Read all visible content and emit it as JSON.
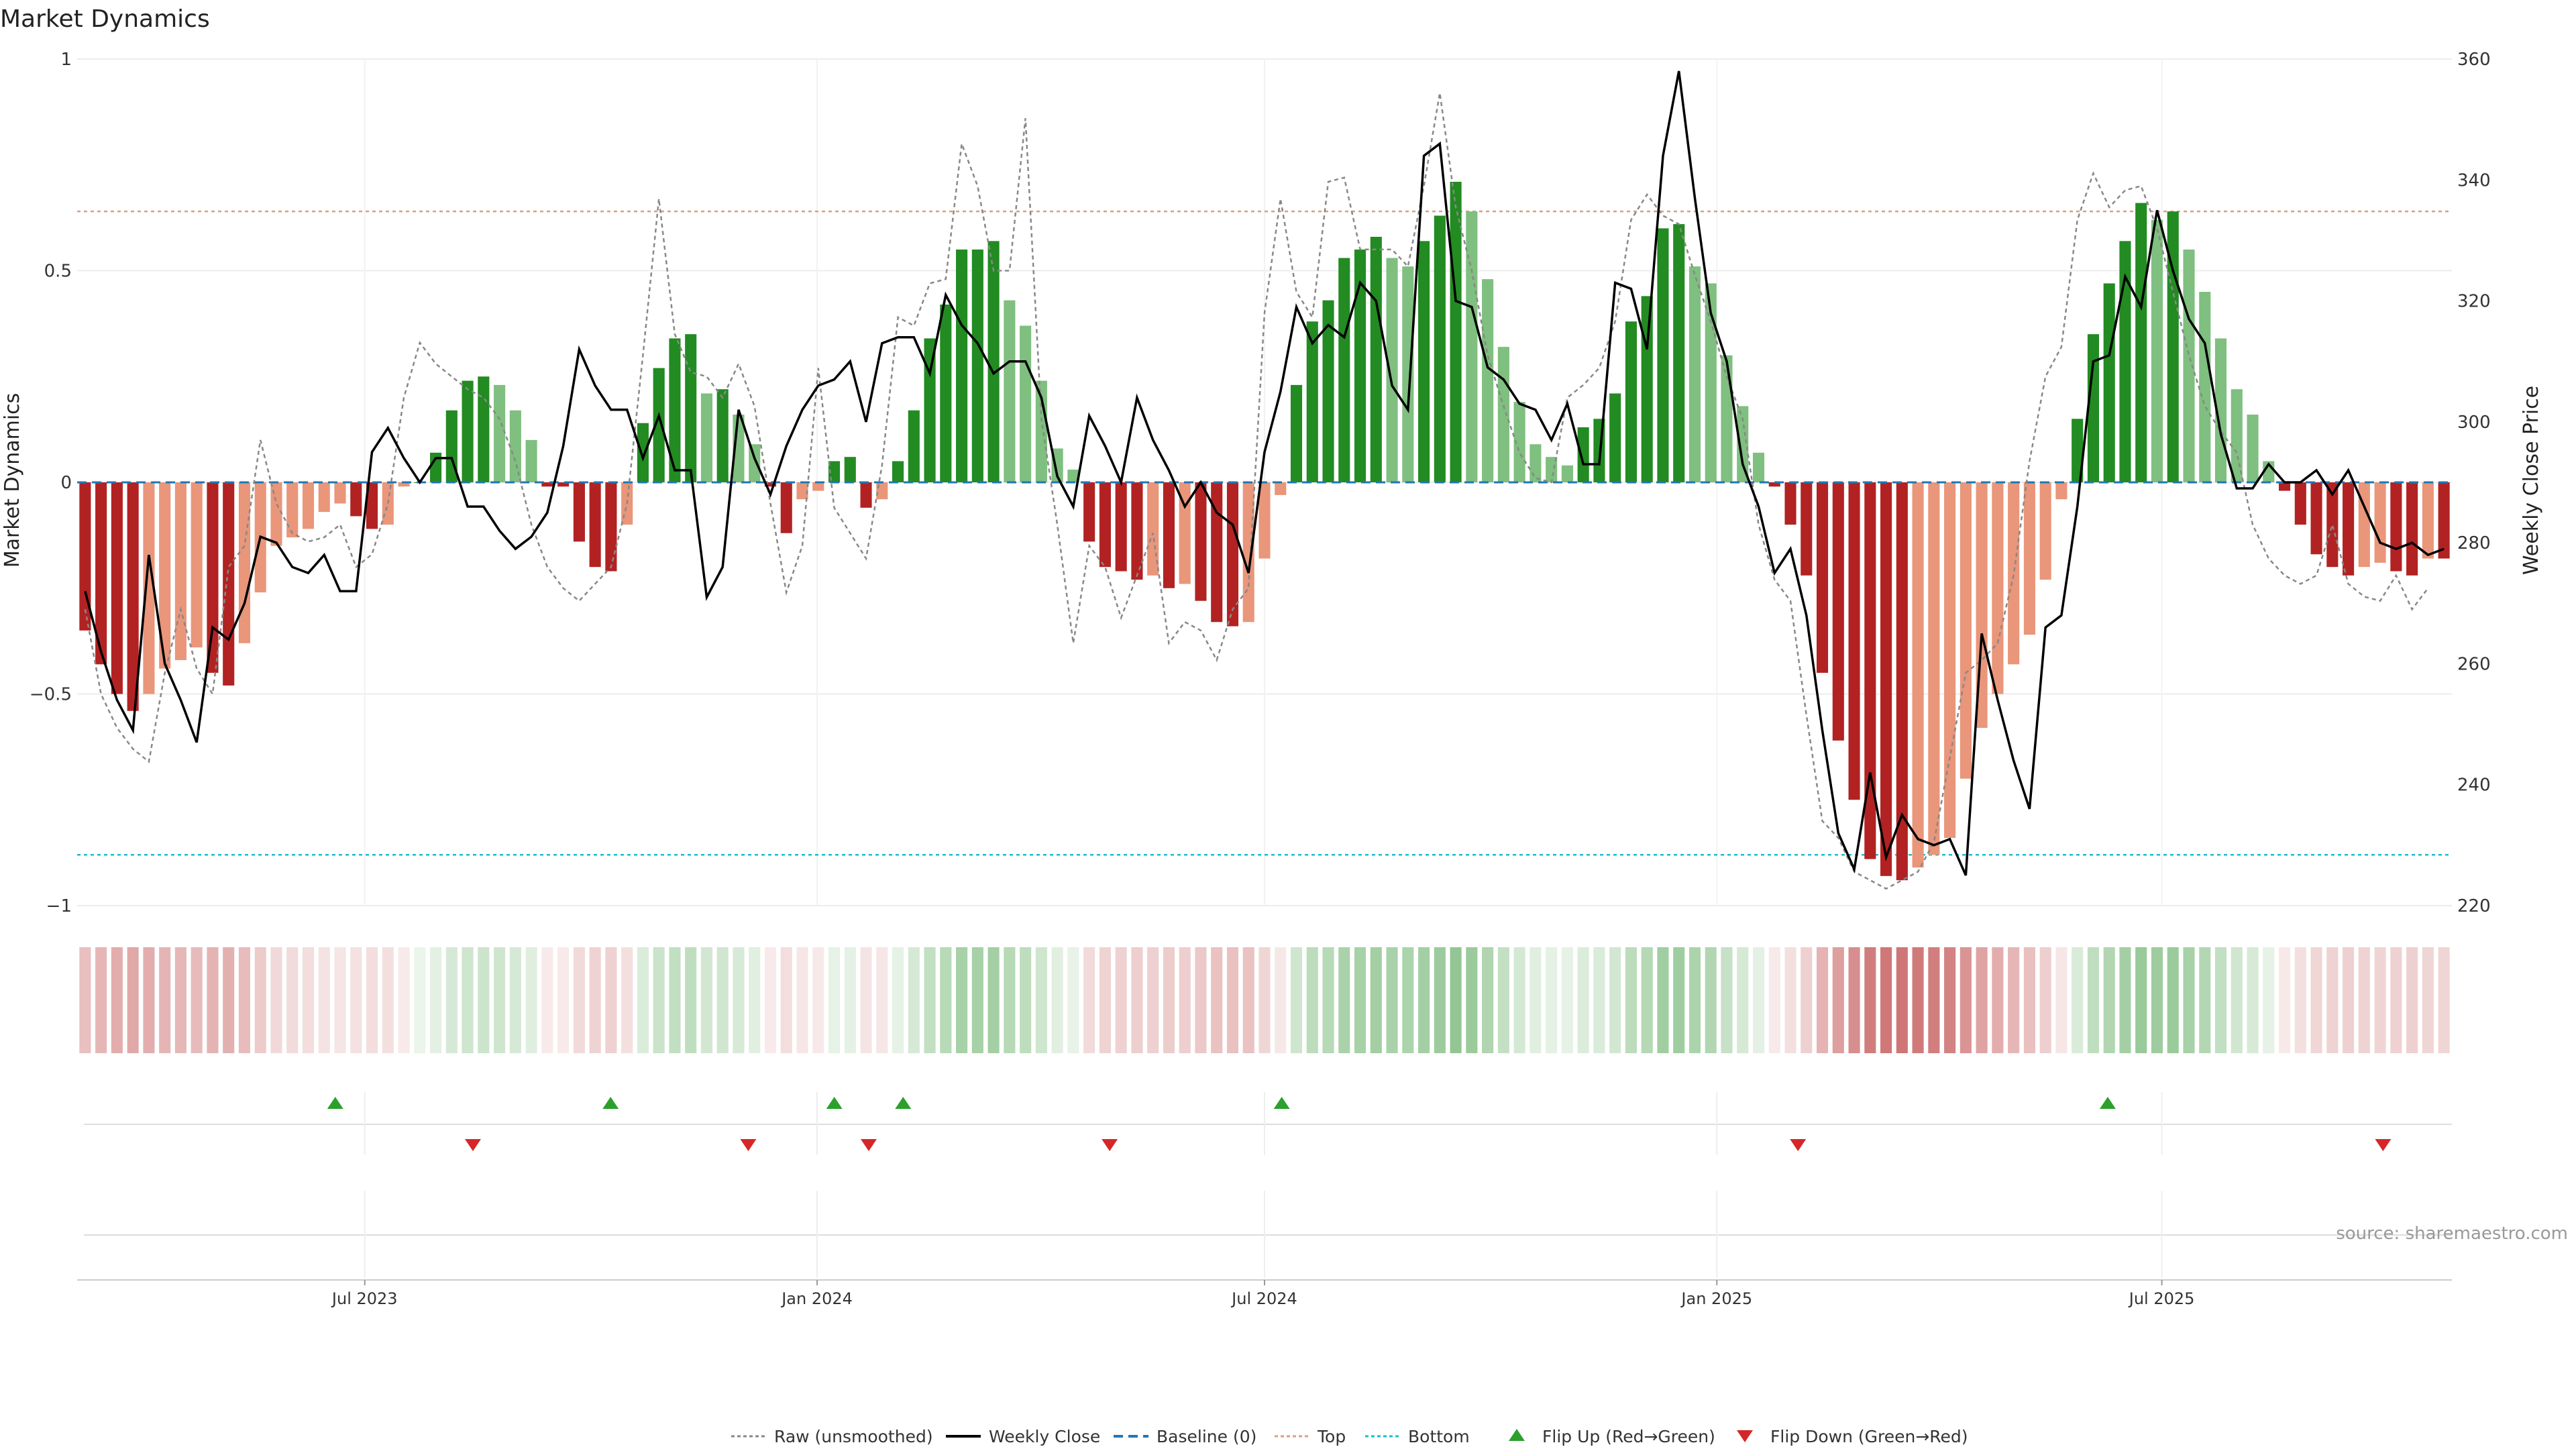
{
  "chart_data": {
    "type": "bar",
    "title": "Market Dynamics",
    "ylabel": "Market Dynamics",
    "y2label": "Weekly Close Price",
    "ylim": [
      -1,
      1
    ],
    "y2lim": [
      220,
      360
    ],
    "yticks": [
      1,
      0.5,
      0,
      -0.5,
      -1
    ],
    "ytick_labels": [
      "1",
      "0.5",
      "0",
      "−0.5",
      "−1"
    ],
    "y2ticks": [
      360,
      340,
      320,
      300,
      280,
      260,
      240,
      220
    ],
    "x_start": "2023-03-06",
    "x_end": "2025-10-27",
    "x_tick_dates": [
      "2023-07-01",
      "2024-01-01",
      "2024-07-01",
      "2025-01-01",
      "2025-07-01"
    ],
    "xtick_labels": [
      "Jul 2023",
      "Jan 2024",
      "Jul 2024",
      "Jan 2025",
      "Jul 2025"
    ],
    "top_threshold": 0.64,
    "bottom_threshold": -0.88,
    "grid": true,
    "legend_position": "bottom-center",
    "colors": {
      "strong_green": "#228B22",
      "weak_green": "#7FBF7F",
      "strong_red": "#B22222",
      "weak_red": "#E9967A",
      "close_line": "#000000",
      "raw_line": "#888888",
      "baseline": "#1f77b4",
      "top_line": "#d8a080",
      "bottom_line": "#17becf",
      "flip_up": "#2ca02c",
      "flip_down": "#d62728"
    },
    "series": [
      {
        "name": "Market Dynamics",
        "values": [
          -0.35,
          -0.43,
          -0.5,
          -0.54,
          -0.5,
          -0.44,
          -0.42,
          -0.39,
          -0.45,
          -0.48,
          -0.38,
          -0.26,
          -0.15,
          -0.13,
          -0.11,
          -0.07,
          -0.05,
          -0.08,
          -0.11,
          -0.1,
          -0.01,
          0.0,
          0.07,
          0.17,
          0.24,
          0.25,
          0.23,
          0.17,
          0.1,
          -0.01,
          -0.01,
          -0.14,
          -0.2,
          -0.21,
          -0.1,
          0.14,
          0.27,
          0.34,
          0.35,
          0.21,
          0.22,
          0.16,
          0.09,
          -0.01,
          -0.12,
          -0.04,
          -0.02,
          0.05,
          0.06,
          -0.06,
          -0.04,
          0.05,
          0.17,
          0.34,
          0.42,
          0.55,
          0.55,
          0.57,
          0.43,
          0.37,
          0.24,
          0.08,
          0.03,
          -0.14,
          -0.2,
          -0.21,
          -0.23,
          -0.22,
          -0.25,
          -0.24,
          -0.28,
          -0.33,
          -0.34,
          -0.33,
          -0.18,
          -0.03,
          0.23,
          0.38,
          0.43,
          0.53,
          0.55,
          0.58,
          0.53,
          0.51,
          0.57,
          0.63,
          0.71,
          0.64,
          0.48,
          0.32,
          0.19,
          0.09,
          0.06,
          0.04,
          0.13,
          0.15,
          0.21,
          0.38,
          0.44,
          0.6,
          0.61,
          0.51,
          0.47,
          0.3,
          0.18,
          0.07,
          -0.01,
          -0.1,
          -0.22,
          -0.45,
          -0.61,
          -0.75,
          -0.89,
          -0.93,
          -0.94,
          -0.91,
          -0.88,
          -0.84,
          -0.7,
          -0.58,
          -0.5,
          -0.43,
          -0.36,
          -0.23,
          -0.04,
          0.15,
          0.35,
          0.47,
          0.57,
          0.66,
          0.62,
          0.64,
          0.55,
          0.45,
          0.34,
          0.22,
          0.16,
          0.05,
          -0.02,
          -0.1,
          -0.17,
          -0.2,
          -0.22,
          -0.2,
          -0.19,
          -0.21,
          -0.22,
          -0.18,
          -0.18
        ]
      },
      {
        "name": "Raw (unsmoothed)",
        "values": [
          -0.3,
          -0.5,
          -0.58,
          -0.63,
          -0.66,
          -0.45,
          -0.3,
          -0.44,
          -0.5,
          -0.2,
          -0.15,
          0.1,
          -0.05,
          -0.12,
          -0.14,
          -0.13,
          -0.1,
          -0.2,
          -0.17,
          -0.05,
          0.2,
          0.33,
          0.28,
          0.25,
          0.22,
          0.2,
          0.15,
          0.05,
          -0.1,
          -0.2,
          -0.25,
          -0.28,
          -0.24,
          -0.2,
          -0.05,
          0.3,
          0.67,
          0.35,
          0.26,
          0.25,
          0.2,
          0.28,
          0.18,
          -0.05,
          -0.26,
          -0.15,
          0.27,
          -0.06,
          -0.12,
          -0.18,
          0.04,
          0.39,
          0.37,
          0.47,
          0.48,
          0.8,
          0.7,
          0.5,
          0.5,
          0.86,
          0.15,
          -0.1,
          -0.38,
          -0.15,
          -0.2,
          -0.32,
          -0.22,
          -0.12,
          -0.38,
          -0.33,
          -0.35,
          -0.42,
          -0.3,
          -0.25,
          0.4,
          0.67,
          0.45,
          0.39,
          0.71,
          0.72,
          0.55,
          0.55,
          0.55,
          0.51,
          0.7,
          0.92,
          0.65,
          0.5,
          0.3,
          0.18,
          0.07,
          0.01,
          0.0,
          0.2,
          0.23,
          0.27,
          0.38,
          0.62,
          0.68,
          0.63,
          0.61,
          0.49,
          0.38,
          0.25,
          0.15,
          -0.1,
          -0.23,
          -0.28,
          -0.55,
          -0.8,
          -0.84,
          -0.92,
          -0.94,
          -0.96,
          -0.94,
          -0.92,
          -0.85,
          -0.65,
          -0.45,
          -0.42,
          -0.38,
          -0.22,
          0.05,
          0.25,
          0.32,
          0.62,
          0.73,
          0.65,
          0.69,
          0.7,
          0.6,
          0.45,
          0.3,
          0.18,
          0.12,
          0.07,
          -0.1,
          -0.18,
          -0.22,
          -0.24,
          -0.22,
          -0.1,
          -0.24,
          -0.27,
          -0.28,
          -0.22,
          -0.3,
          -0.25
        ]
      },
      {
        "name": "Weekly Close",
        "values": [
          272,
          262,
          254,
          249,
          278,
          260,
          254,
          247,
          266,
          264,
          270,
          281,
          280,
          276,
          275,
          278,
          272,
          272,
          295,
          299,
          294,
          290,
          294,
          294,
          286,
          286,
          282,
          279,
          281,
          285,
          296,
          312,
          306,
          302,
          302,
          294,
          301,
          292,
          292,
          271,
          276,
          302,
          294,
          288,
          296,
          302,
          306,
          307,
          310,
          300,
          313,
          314,
          314,
          308,
          321,
          316,
          313,
          308,
          310,
          310,
          304,
          291,
          286,
          301,
          296,
          290,
          304,
          297,
          292,
          286,
          290,
          285,
          283,
          275,
          295,
          305,
          319,
          313,
          316,
          314,
          323,
          320,
          306,
          302,
          344,
          346,
          320,
          319,
          309,
          307,
          303,
          302,
          297,
          303,
          293,
          293,
          323,
          322,
          312,
          344,
          358,
          337,
          318,
          310,
          293,
          286,
          275,
          279,
          268,
          249,
          232,
          226,
          242,
          228,
          235,
          231,
          230,
          231,
          225,
          265,
          254,
          244,
          236,
          266,
          268,
          286,
          310,
          311,
          324,
          319,
          335,
          325,
          317,
          313,
          298,
          289,
          289,
          293,
          290,
          290,
          292,
          288,
          292,
          286,
          280,
          279,
          280,
          278,
          279
        ]
      }
    ],
    "flip_up_dates": [
      "2023-06-19",
      "2023-10-09",
      "2024-01-08",
      "2024-02-05",
      "2024-07-08",
      "2025-06-09"
    ],
    "flip_down_dates": [
      "2023-08-14",
      "2023-12-04",
      "2024-01-22",
      "2024-04-29",
      "2025-02-03",
      "2025-09-29"
    ]
  },
  "legend": [
    {
      "label": "Raw (unsmoothed)",
      "icon": "dotted-line-icon"
    },
    {
      "label": "Weekly Close",
      "icon": "solid-line-icon"
    },
    {
      "label": "Baseline (0)",
      "icon": "dashed-line-icon"
    },
    {
      "label": "Top",
      "icon": "dotted-line-icon"
    },
    {
      "label": "Bottom",
      "icon": "dotted-line-icon"
    },
    {
      "label": "Flip Up (Red→Green)",
      "icon": "triangle-up-icon"
    },
    {
      "label": "Flip Down (Green→Red)",
      "icon": "triangle-down-icon"
    }
  ],
  "source_label": "source: sharemaestro.com"
}
